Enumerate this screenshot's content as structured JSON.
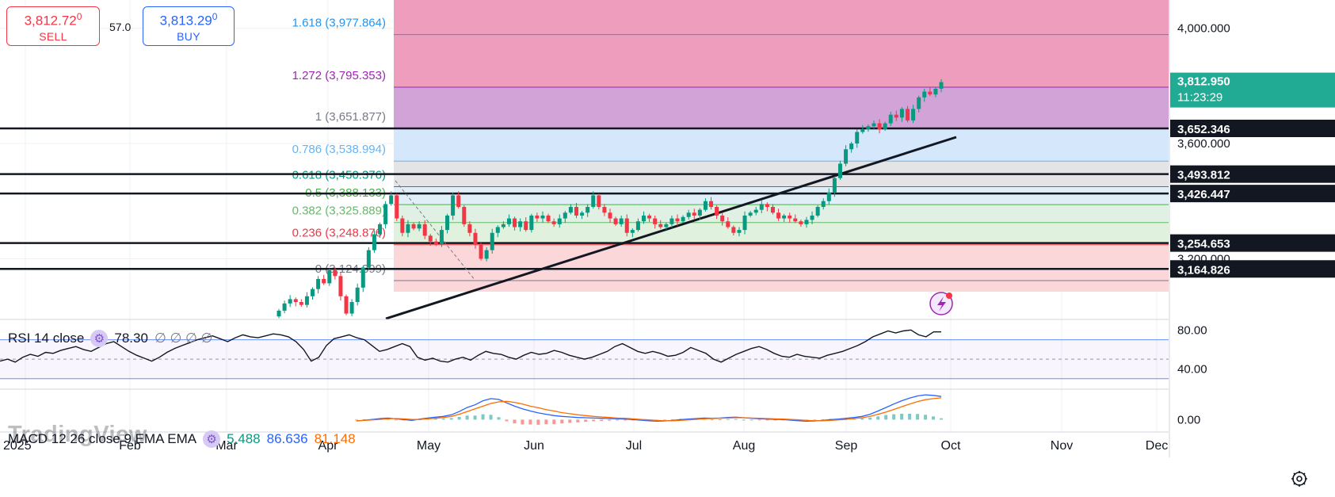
{
  "trade": {
    "sell_main": "3,812.72",
    "sell_sup": "0",
    "sell_label": "SELL",
    "spread": "57.0",
    "buy_main": "3,813.29",
    "buy_sup": "0",
    "buy_label": "BUY"
  },
  "chart_data": {
    "type": "candlestick",
    "y_axis_range": [
      3080,
      4070
    ],
    "price_axis_ticks": [
      "4,000.000",
      "3,600.000",
      "3,200.000"
    ],
    "price_axis_tick_values": [
      4000,
      3600,
      3200
    ],
    "x_axis_labels": [
      "2025",
      "Feb",
      "Mar",
      "Apr",
      "May",
      "Jun",
      "Jul",
      "Aug",
      "Sep",
      "Oct",
      "Nov",
      "Dec"
    ],
    "fib_levels": [
      {
        "ratio": "1.618",
        "label": "1.618 (3,977.864)",
        "price": 3977.864,
        "color": "#2196f3",
        "fill": "#ee9ebc"
      },
      {
        "ratio": "1.272",
        "label": "1.272 (3,795.353)",
        "price": 3795.353,
        "color": "#9c27b0",
        "fill": "#d1a3d6"
      },
      {
        "ratio": "1",
        "label": "1 (3,651.877)",
        "price": 3651.877,
        "color": "#787b86",
        "fill": "#d5e8fb"
      },
      {
        "ratio": "0.786",
        "label": "0.786 (3,538.994)",
        "price": 3538.994,
        "color": "#64b5f6",
        "fill": "#e4e4e6"
      },
      {
        "ratio": "0.618",
        "label": "0.618 (3,450.376)",
        "price": 3450.376,
        "color": "#089981",
        "fill": "#e0eef8"
      },
      {
        "ratio": "0.5",
        "label": "0.5 (3,388.133)",
        "price": 3388.133,
        "color": "#4caf50",
        "fill": "#e0f0e4"
      },
      {
        "ratio": "0.382",
        "label": "0.382 (3,325.889)",
        "price": 3325.889,
        "color": "#66bb6a",
        "fill": "#e0f2dd"
      },
      {
        "ratio": "0.236",
        "label": "0.236 (3,248.876)",
        "price": 3248.876,
        "color": "#f23645",
        "fill": "#fcd7d9"
      },
      {
        "ratio": "0",
        "label": "0 (3,124.399)",
        "price": 3124.399,
        "color": "#787b86",
        "fill": ""
      }
    ],
    "horizontal_lines": [
      3652.346,
      3493.812,
      3426.447,
      3254.653,
      3164.826
    ],
    "price_tags": [
      {
        "label": "3,652.346",
        "price": 3652.346
      },
      {
        "label": "3,493.812",
        "price": 3493.812
      },
      {
        "label": "3,426.447",
        "price": 3426.447
      },
      {
        "label": "3,254.653",
        "price": 3254.653
      },
      {
        "label": "3,164.826",
        "price": 3164.826
      }
    ],
    "current_price": {
      "label": "3,812.950",
      "countdown": "11:23:29",
      "price": 3812.95,
      "color": "#22ab94"
    },
    "trendline": {
      "start": [
        "Apr 17",
        3080
      ],
      "end": [
        "Sep 29",
        3620
      ]
    },
    "candles_close": [
      3020,
      3045,
      3060,
      3050,
      3040,
      3070,
      3095,
      3130,
      3115,
      3160,
      3140,
      3070,
      3010,
      3050,
      3100,
      3170,
      3230,
      3285,
      3320,
      3390,
      3420,
      3340,
      3290,
      3320,
      3305,
      3320,
      3280,
      3260,
      3250,
      3300,
      3350,
      3420,
      3380,
      3320,
      3290,
      3250,
      3200,
      3230,
      3290,
      3310,
      3320,
      3340,
      3310,
      3330,
      3300,
      3350,
      3340,
      3350,
      3330,
      3320,
      3340,
      3360,
      3380,
      3350,
      3360,
      3380,
      3420,
      3380,
      3360,
      3340,
      3320,
      3340,
      3290,
      3300,
      3330,
      3350,
      3340,
      3320,
      3310,
      3320,
      3340,
      3330,
      3345,
      3360,
      3350,
      3370,
      3400,
      3380,
      3350,
      3330,
      3310,
      3290,
      3300,
      3350,
      3360,
      3370,
      3390,
      3380,
      3360,
      3340,
      3350,
      3340,
      3330,
      3320,
      3335,
      3350,
      3380,
      3400,
      3430,
      3480,
      3530,
      3580,
      3600,
      3640,
      3650,
      3660,
      3670,
      3650,
      3670,
      3700,
      3690,
      3720,
      3680,
      3720,
      3760,
      3780,
      3770,
      3790,
      3813
    ],
    "rsi": {
      "label": "RSI 14 close",
      "value": "78.30",
      "extra": "∅ ∅ ∅ ∅",
      "levels": [
        70,
        50,
        30
      ],
      "tick_labels": [
        "80.00",
        "40.00"
      ],
      "tick_values": [
        80,
        40
      ],
      "range": [
        20,
        90
      ],
      "values": [
        48,
        50,
        47,
        52,
        55,
        53,
        57,
        56,
        59,
        61,
        63,
        60,
        58,
        62,
        66,
        68,
        63,
        58,
        54,
        51,
        48,
        52,
        57,
        61,
        64,
        67,
        70,
        72,
        74,
        71,
        68,
        72,
        75,
        73,
        72,
        74,
        76,
        75,
        73,
        68,
        60,
        48,
        52,
        64,
        71,
        73,
        75,
        72,
        70,
        64,
        58,
        60,
        63,
        66,
        63,
        52,
        49,
        51,
        48,
        47,
        50,
        52,
        49,
        54,
        58,
        56,
        55,
        52,
        50,
        54,
        57,
        55,
        56,
        59,
        57,
        54,
        52,
        50,
        52,
        55,
        58,
        63,
        66,
        62,
        58,
        56,
        58,
        56,
        53,
        54,
        57,
        62,
        59,
        56,
        50,
        47,
        51,
        55,
        58,
        61,
        63,
        60,
        56,
        53,
        52,
        55,
        53,
        52,
        51,
        54,
        56,
        58,
        61,
        64,
        68,
        73,
        76,
        79,
        77,
        79,
        80,
        75,
        73,
        78,
        78
      ]
    },
    "macd": {
      "label": "MACD 12 26 close 9 EMA EMA",
      "v1": "5.488",
      "v2": "86.636",
      "v3": "81.148",
      "tick_labels": [
        "0.00"
      ],
      "tick_values": [
        0
      ],
      "range": [
        -40,
        110
      ],
      "macd_color": "#2962ff",
      "signal_color": "#ff6d00",
      "macd_values": [
        -5,
        -2,
        1,
        4,
        6,
        3,
        0,
        -3,
        2,
        6,
        9,
        12,
        18,
        30,
        45,
        55,
        70,
        78,
        75,
        62,
        50,
        40,
        32,
        25,
        20,
        15,
        12,
        10,
        8,
        7,
        6,
        5,
        4,
        3,
        2,
        0,
        -2,
        -4,
        -6,
        -5,
        -3,
        0,
        2,
        4,
        6,
        5,
        6,
        8,
        9,
        7,
        5,
        3,
        2,
        1,
        0,
        -2,
        -4,
        -6,
        -5,
        -3,
        0,
        2,
        5,
        8,
        12,
        20,
        32,
        45,
        58,
        70,
        80,
        88,
        92,
        90,
        86
      ],
      "signal_values": [
        -4,
        -3,
        -1,
        1,
        3,
        4,
        3,
        1,
        1,
        3,
        5,
        8,
        12,
        20,
        30,
        40,
        50,
        60,
        66,
        68,
        64,
        58,
        50,
        44,
        37,
        32,
        26,
        22,
        18,
        15,
        12,
        10,
        8,
        6,
        5,
        3,
        1,
        -1,
        -3,
        -4,
        -4,
        -3,
        -1,
        1,
        3,
        4,
        5,
        6,
        7,
        7,
        6,
        5,
        4,
        3,
        2,
        1,
        -1,
        -3,
        -4,
        -4,
        -3,
        -1,
        1,
        4,
        7,
        12,
        20,
        28,
        38,
        48,
        58,
        67,
        74,
        78,
        81
      ]
    },
    "watermark": "TradingView"
  }
}
